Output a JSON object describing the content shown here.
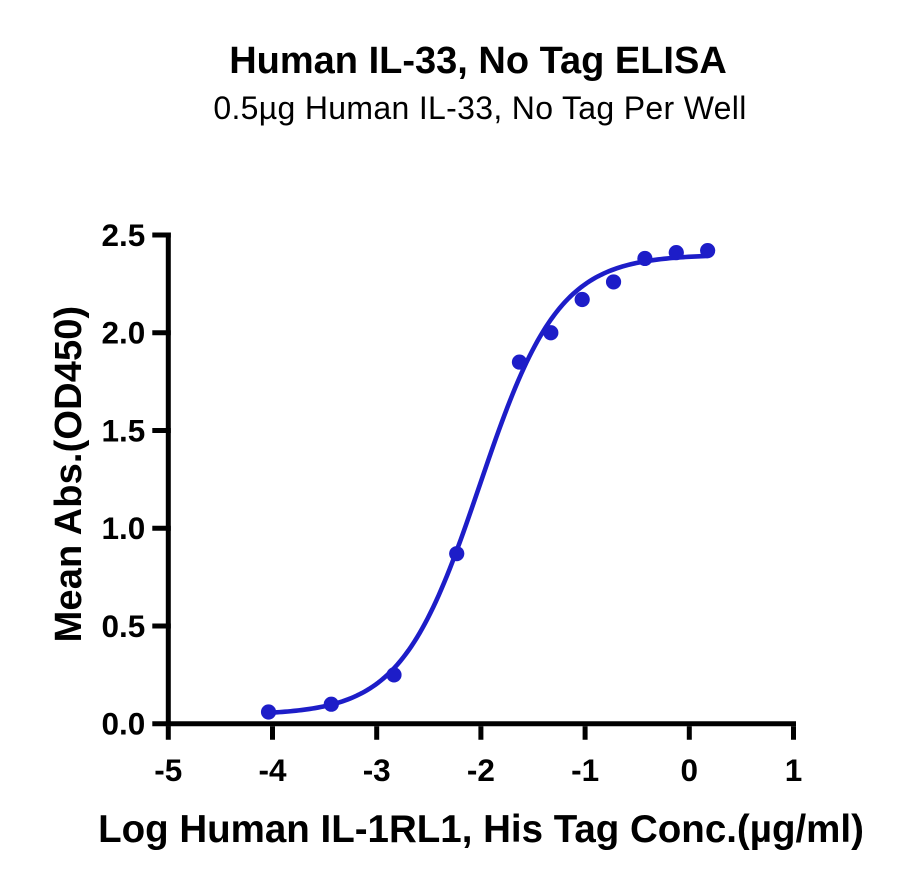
{
  "chart_data": {
    "type": "scatter",
    "title": "Human IL-33, No Tag ELISA",
    "subtitle": "0.5µg Human IL-33, No Tag Per Well",
    "xlabel": "Log Human IL-1RL1, His Tag Conc.(µg/ml)",
    "ylabel": "Mean Abs.(OD450)",
    "xlim": [
      -5,
      1
    ],
    "ylim": [
      0,
      2.5
    ],
    "x_ticks": [
      -5,
      -4,
      -3,
      -2,
      -1,
      0,
      1
    ],
    "x_tick_labels": [
      "-5",
      "-4",
      "-3",
      "-2",
      "-1",
      "0",
      "1"
    ],
    "y_ticks": [
      0,
      0.5,
      1,
      1.5,
      2,
      2.5
    ],
    "y_tick_labels": [
      "0.0",
      "0.5",
      "1.0",
      "1.5",
      "2.0",
      "2.5"
    ],
    "grid": false,
    "legend": false,
    "axis_color": "#000000",
    "series": [
      {
        "name": "Human IL-33, No Tag",
        "marker": "circle",
        "color": "#1d1dc8",
        "log_x": [
          -4.038,
          -3.436,
          -2.834,
          -2.232,
          -1.63,
          -1.329,
          -1.028,
          -0.727,
          -0.426,
          -0.125,
          0.176
        ],
        "y": [
          0.06,
          0.1,
          0.25,
          0.87,
          1.85,
          2.0,
          2.17,
          2.26,
          2.38,
          2.41,
          2.42
        ]
      }
    ],
    "fit_curve": {
      "model": "4PL",
      "bottom": 0.045,
      "top": 2.4,
      "log_ec50": -2.01,
      "hill": 1.15,
      "x_start": -4.038,
      "x_end": 0.176,
      "color": "#1d1dc8"
    }
  }
}
